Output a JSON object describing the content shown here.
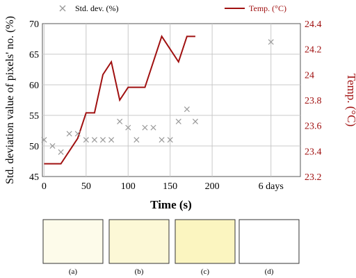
{
  "chart_data": {
    "type": "line",
    "xlabel": "Time (s)",
    "ylabel_left": "Std. deviation value of pixels' no. (%)",
    "ylabel_right": "Temp. (°C)",
    "x_ticks": [
      "0",
      "50",
      "100",
      "150",
      "200",
      "6 days"
    ],
    "x_tick_values": [
      0,
      50,
      100,
      150,
      200,
      270
    ],
    "xlim": [
      -2,
      305
    ],
    "y_left_ticks": [
      45,
      50,
      55,
      60,
      65,
      70
    ],
    "y_left_lim": [
      45,
      70
    ],
    "y_right_ticks": [
      "23.2",
      "23.4",
      "23.6",
      "23.8",
      "24",
      "24.2",
      "24.4"
    ],
    "y_right_lim": [
      23.2,
      24.4
    ],
    "grid": true,
    "legend": [
      "Std. dev. (%)",
      "Temp. (°C)"
    ],
    "series": [
      {
        "name": "Std. dev. (%)",
        "axis": "left",
        "marker": "x",
        "color": "#999999",
        "x": [
          0,
          10,
          20,
          30,
          40,
          50,
          60,
          70,
          80,
          90,
          100,
          110,
          120,
          130,
          140,
          150,
          160,
          170,
          180,
          270
        ],
        "y": [
          51,
          50,
          49,
          52,
          52,
          51,
          51,
          51,
          51,
          54,
          53,
          51,
          53,
          53,
          51,
          51,
          54,
          56,
          54,
          67
        ]
      },
      {
        "name": "Temp. (°C)",
        "axis": "right",
        "marker": "line",
        "color": "#a01010",
        "x": [
          0,
          20,
          40,
          50,
          60,
          70,
          80,
          90,
          100,
          120,
          140,
          160,
          170,
          180
        ],
        "y": [
          23.3,
          23.3,
          23.5,
          23.7,
          23.7,
          24.0,
          24.1,
          23.8,
          23.9,
          23.9,
          24.3,
          24.1,
          24.3,
          24.3
        ]
      }
    ]
  },
  "panels": [
    {
      "label": "(a)",
      "color": "#fdfbea"
    },
    {
      "label": "(b)",
      "color": "#fcf8d6"
    },
    {
      "label": "(c)",
      "color": "#fbf5c0"
    },
    {
      "label": "(d)",
      "color": "#ffffff"
    }
  ]
}
